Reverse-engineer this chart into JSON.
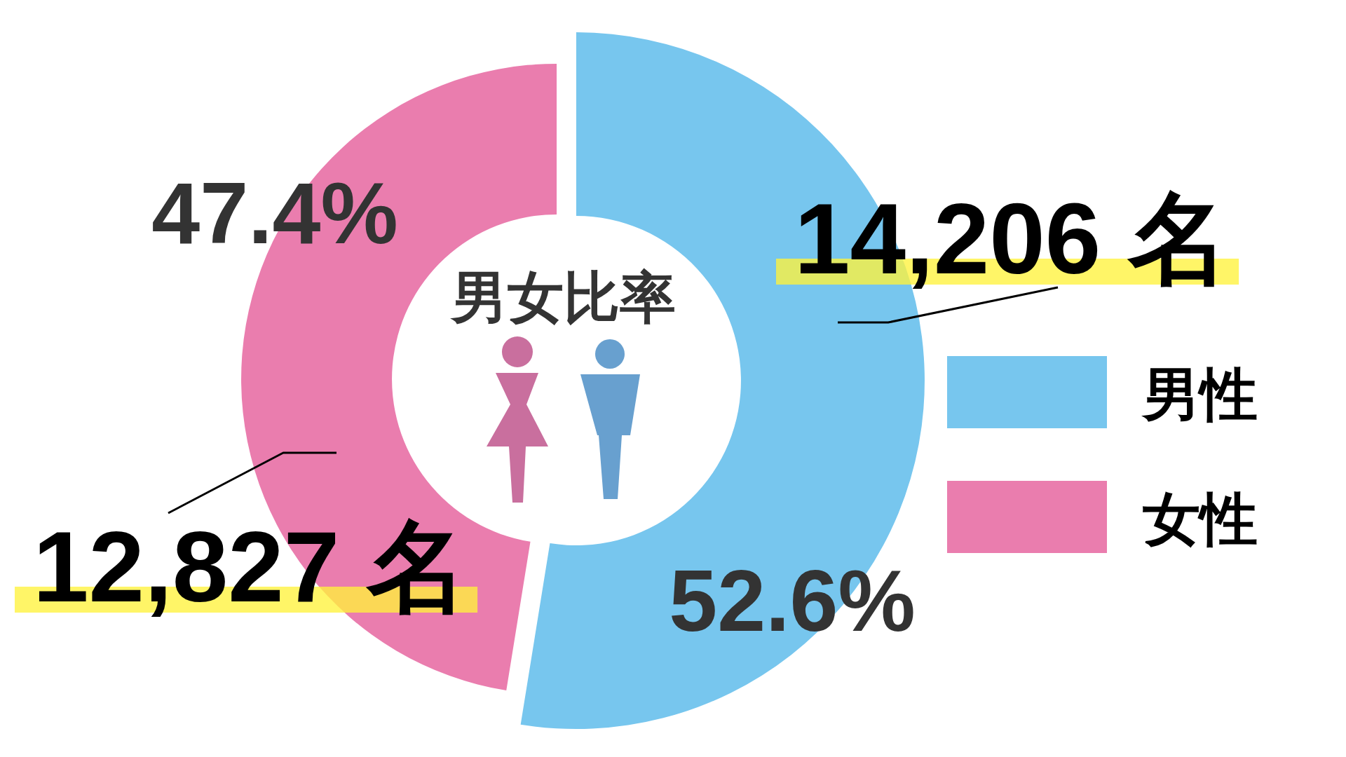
{
  "chart_data": {
    "type": "donut",
    "title": "男女比率",
    "categories": [
      "男性",
      "女性"
    ],
    "values": [
      14206,
      12827
    ],
    "colors": [
      "#77c6ee",
      "#ea7dae"
    ],
    "value_labels": [
      "14,206 名",
      "12,827 名"
    ],
    "annotations": [
      "52.6%",
      "47.4%"
    ],
    "legend": "right"
  }
}
